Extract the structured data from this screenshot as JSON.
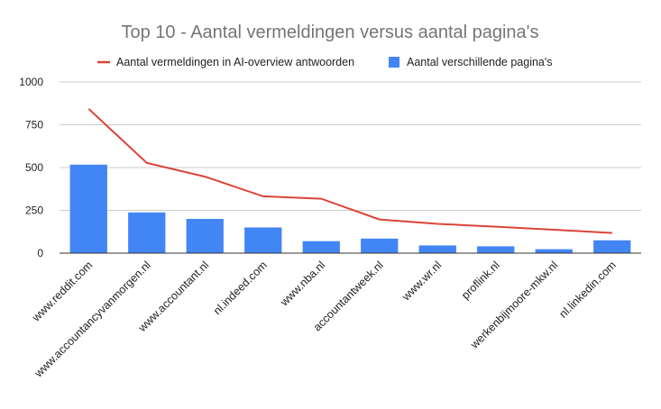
{
  "chart_data": {
    "type": "bar",
    "title": "Top 10 - Aantal vermeldingen versus aantal pagina's",
    "categories": [
      "www.reddit.com",
      "www.accountancyvanmorgen.nl",
      "www.accountant.nl",
      "nl.indeed.com",
      "www.nba.nl",
      "accountantweek.nl",
      "www.wr.nl",
      "proflink.nl",
      "werkenbijmoore-mkw.nl",
      "nl.linkedin.com"
    ],
    "series": [
      {
        "name": "Aantal vermeldingen in AI-overview antwoorden",
        "type": "line",
        "color": "#db4437",
        "values": [
          843,
          527,
          447,
          332,
          318,
          197,
          171,
          155,
          137,
          118
        ]
      },
      {
        "name": "Aantal verschillende pagina's",
        "type": "bar",
        "color": "#4285f4",
        "values": [
          517,
          238,
          200,
          150,
          70,
          85,
          45,
          40,
          23,
          75
        ]
      }
    ],
    "ylim": [
      0,
      1000
    ],
    "yticks": [
      "0",
      "250",
      "500",
      "750",
      "1000"
    ],
    "grid": true,
    "legend_position": "top"
  }
}
